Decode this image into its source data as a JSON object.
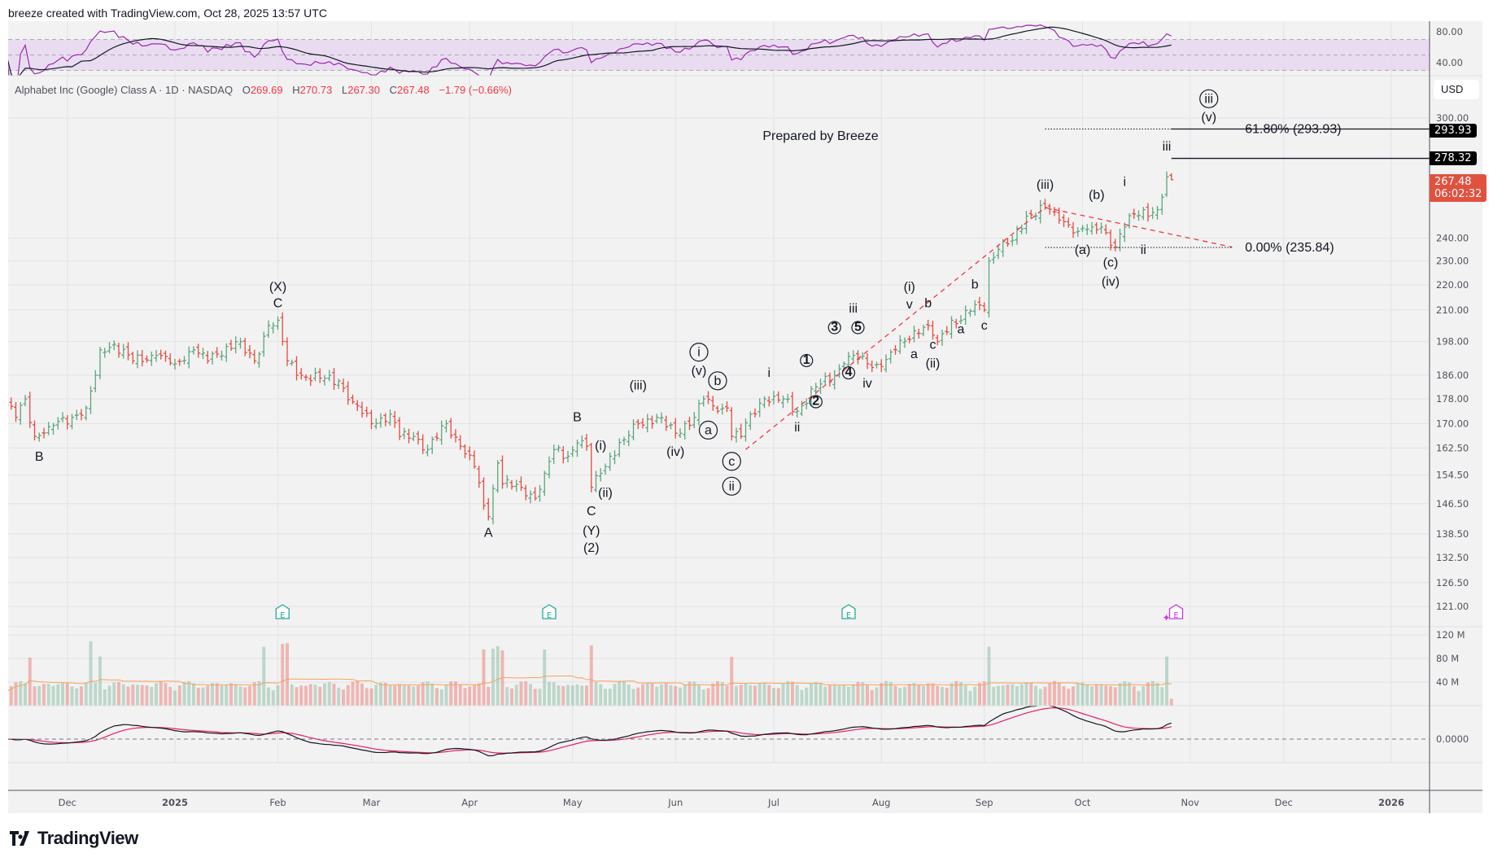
{
  "header": {
    "credit": "breeze created with TradingView.com, Oct 28, 2025 13:57 UTC"
  },
  "legend": {
    "symbol": "Alphabet Inc (Google) Class A · 1D · NASDAQ",
    "open_label": "O",
    "open": "269.69",
    "high_label": "H",
    "high": "270.73",
    "low_label": "L",
    "low": "267.30",
    "close_label": "C",
    "close": "267.48",
    "change": "−1.79 (−0.66%)"
  },
  "currency": "USD",
  "price_tags": {
    "fib_618": "293.93",
    "target_iii": "278.32",
    "last_price": "267.48",
    "countdown": "06:02:32"
  },
  "brand": "TradingView",
  "colors": {
    "up": "#5aa57e",
    "down": "#e8493e",
    "rsi": "#9c27b0",
    "rsi_band": "#e6d6f0",
    "macd": "#131722",
    "signal": "#e91e63",
    "vol_ma": "#f7a35c",
    "last_price": "#e0523f",
    "fib_line": "#131722",
    "channel": "#f23645",
    "earnings": "#22ab94",
    "earnings_upcoming": "#c837e6"
  },
  "chart_data": {
    "type": "ohlc",
    "symbol": "GOOGL",
    "interval": "1D",
    "y_scale": "log",
    "grid": true,
    "price_axis": {
      "ticks": [
        "300.00",
        "240.00",
        "230.00",
        "220.00",
        "210.00",
        "198.00",
        "186.00",
        "178.00",
        "170.00",
        "162.50",
        "154.50",
        "146.50",
        "138.50",
        "132.50",
        "126.50",
        "121.00"
      ]
    },
    "rsi_axis": {
      "ticks": [
        "80.00",
        "40.00"
      ],
      "band": [
        30,
        70
      ]
    },
    "volume_axis": {
      "ticks": [
        "120 M",
        "80 M",
        "40 M"
      ]
    },
    "macd_axis": {
      "ticks": [
        "0.0000"
      ]
    },
    "time_axis": [
      {
        "label": "Dec",
        "date": "2024-12-02",
        "bold": false
      },
      {
        "label": "2025",
        "date": "2025-01-02",
        "bold": true
      },
      {
        "label": "Feb",
        "date": "2025-02-03",
        "bold": false
      },
      {
        "label": "Mar",
        "date": "2025-03-03",
        "bold": false
      },
      {
        "label": "Apr",
        "date": "2025-04-01",
        "bold": false
      },
      {
        "label": "May",
        "date": "2025-05-01",
        "bold": false
      },
      {
        "label": "Jun",
        "date": "2025-06-02",
        "bold": false
      },
      {
        "label": "Jul",
        "date": "2025-07-01",
        "bold": false
      },
      {
        "label": "Aug",
        "date": "2025-08-01",
        "bold": false
      },
      {
        "label": "Sep",
        "date": "2025-09-02",
        "bold": false
      },
      {
        "label": "Oct",
        "date": "2025-10-01",
        "bold": false
      },
      {
        "label": "Nov",
        "date": "2025-11-03",
        "bold": false
      },
      {
        "label": "Dec",
        "date": "2025-12-01",
        "bold": false
      },
      {
        "label": "2026",
        "date": "2026-01-01",
        "bold": true
      }
    ],
    "closes_approx": [
      [
        "2024-11-13",
        176
      ],
      [
        "2024-11-15",
        172
      ],
      [
        "2024-11-19",
        178
      ],
      [
        "2024-11-21",
        166
      ],
      [
        "2024-11-26",
        169
      ],
      [
        "2024-12-03",
        172
      ],
      [
        "2024-12-06",
        175
      ],
      [
        "2024-12-10",
        186
      ],
      [
        "2024-12-11",
        195
      ],
      [
        "2024-12-16",
        197
      ],
      [
        "2024-12-20",
        191
      ],
      [
        "2024-12-27",
        193
      ],
      [
        "2025-01-02",
        190
      ],
      [
        "2025-01-08",
        195
      ],
      [
        "2025-01-13",
        191
      ],
      [
        "2025-01-21",
        198
      ],
      [
        "2025-01-27",
        191
      ],
      [
        "2025-01-30",
        204
      ],
      [
        "2025-02-03",
        206
      ],
      [
        "2025-02-05",
        191
      ],
      [
        "2025-02-10",
        186
      ],
      [
        "2025-02-14",
        185
      ],
      [
        "2025-02-20",
        184
      ],
      [
        "2025-02-25",
        177
      ],
      [
        "2025-03-03",
        170
      ],
      [
        "2025-03-07",
        173
      ],
      [
        "2025-03-11",
        166
      ],
      [
        "2025-03-14",
        166
      ],
      [
        "2025-03-19",
        162
      ],
      [
        "2025-03-25",
        170
      ],
      [
        "2025-03-28",
        163
      ],
      [
        "2025-04-02",
        157
      ],
      [
        "2025-04-04",
        146
      ],
      [
        "2025-04-07",
        143
      ],
      [
        "2025-04-09",
        158
      ],
      [
        "2025-04-10",
        152
      ],
      [
        "2025-04-16",
        151
      ],
      [
        "2025-04-21",
        148
      ],
      [
        "2025-04-23",
        155
      ],
      [
        "2025-04-25",
        162
      ],
      [
        "2025-04-30",
        160
      ],
      [
        "2025-05-02",
        164
      ],
      [
        "2025-05-06",
        163
      ],
      [
        "2025-05-07",
        151
      ],
      [
        "2025-05-09",
        155
      ],
      [
        "2025-05-13",
        160
      ],
      [
        "2025-05-16",
        165
      ],
      [
        "2025-05-21",
        170
      ],
      [
        "2025-05-27",
        172
      ],
      [
        "2025-06-02",
        167
      ],
      [
        "2025-06-06",
        172
      ],
      [
        "2025-06-10",
        178
      ],
      [
        "2025-06-13",
        174
      ],
      [
        "2025-06-17",
        175
      ],
      [
        "2025-06-18",
        166
      ],
      [
        "2025-06-20",
        166
      ],
      [
        "2025-06-24",
        173
      ],
      [
        "2025-06-27",
        178
      ],
      [
        "2025-06-30",
        177
      ],
      [
        "2025-07-03",
        178
      ],
      [
        "2025-07-08",
        174
      ],
      [
        "2025-07-14",
        182
      ],
      [
        "2025-07-18",
        186
      ],
      [
        "2025-07-22",
        190
      ],
      [
        "2025-07-24",
        193
      ],
      [
        "2025-07-29",
        190
      ],
      [
        "2025-08-01",
        189
      ],
      [
        "2025-08-06",
        195
      ],
      [
        "2025-08-12",
        202
      ],
      [
        "2025-08-15",
        204
      ],
      [
        "2025-08-19",
        198
      ],
      [
        "2025-08-22",
        206
      ],
      [
        "2025-08-26",
        206
      ],
      [
        "2025-08-29",
        212
      ],
      [
        "2025-09-02",
        210
      ],
      [
        "2025-09-03",
        230
      ],
      [
        "2025-09-05",
        235
      ],
      [
        "2025-09-10",
        239
      ],
      [
        "2025-09-15",
        250
      ],
      [
        "2025-09-19",
        254
      ],
      [
        "2025-09-23",
        252
      ],
      [
        "2025-09-26",
        246
      ],
      [
        "2025-09-30",
        243
      ],
      [
        "2025-10-03",
        245
      ],
      [
        "2025-10-07",
        245
      ],
      [
        "2025-10-10",
        236
      ],
      [
        "2025-10-14",
        245
      ],
      [
        "2025-10-16",
        251
      ],
      [
        "2025-10-20",
        253
      ],
      [
        "2025-10-21",
        250
      ],
      [
        "2025-10-23",
        253
      ],
      [
        "2025-10-24",
        259
      ],
      [
        "2025-10-27",
        269
      ],
      [
        "2025-10-28",
        267.48
      ]
    ],
    "last_bar": {
      "open": 269.69,
      "high": 270.73,
      "low": 267.3,
      "close": 267.48
    },
    "earnings": [
      {
        "date": "2025-02-04",
        "label": "E",
        "upcoming": false
      },
      {
        "date": "2025-04-24",
        "label": "E",
        "upcoming": false
      },
      {
        "date": "2025-07-23",
        "label": "E",
        "upcoming": false
      },
      {
        "date": "2025-10-29",
        "label": "E",
        "upcoming": true
      }
    ],
    "fibonacci": [
      {
        "label": "61.80% (293.93)",
        "price": 293.93,
        "from": "2025-09-19",
        "to": "2025-10-28"
      },
      {
        "label": "0.00% (235.84)",
        "price": 235.84,
        "from": "2025-09-19",
        "to": "2025-11-14"
      }
    ],
    "target_line": {
      "price": 278.32,
      "from": "2025-10-28"
    },
    "trendlines": [
      {
        "from": [
          "2025-06-23",
          162
        ],
        "to": [
          "2025-09-19",
          254
        ]
      },
      {
        "from": [
          "2025-09-19",
          254
        ],
        "to": [
          "2025-11-14",
          236
        ]
      }
    ],
    "note": {
      "text": "Prepared by Breeze",
      "date": "2025-07-15",
      "price": 288
    },
    "wave_labels": [
      {
        "text": "B",
        "date": "2024-11-22",
        "price": 158.7,
        "circled": false
      },
      {
        "text": "(X)",
        "date": "2025-02-03",
        "price": 217.6,
        "circled": false
      },
      {
        "text": "C",
        "date": "2025-02-03",
        "price": 211,
        "circled": false
      },
      {
        "text": "A",
        "date": "2025-04-07",
        "price": 137.7,
        "circled": false
      },
      {
        "text": "B",
        "date": "2025-05-02",
        "price": 170.7,
        "circled": false
      },
      {
        "text": "C",
        "date": "2025-05-07",
        "price": 143.4,
        "circled": false
      },
      {
        "text": "(Y)",
        "date": "2025-05-07",
        "price": 138.3,
        "circled": false
      },
      {
        "text": "(2)",
        "date": "2025-05-07",
        "price": 133.9,
        "circled": false
      },
      {
        "text": "(i)",
        "date": "2025-05-09",
        "price": 162,
        "circled": false
      },
      {
        "text": "(ii)",
        "date": "2025-05-12",
        "price": 148.4,
        "circled": false
      },
      {
        "text": "(iii)",
        "date": "2025-05-21",
        "price": 181.1,
        "circled": false
      },
      {
        "text": "(iv)",
        "date": "2025-06-02",
        "price": 160.1,
        "circled": false
      },
      {
        "text": "i",
        "date": "2025-06-09",
        "price": 192.7,
        "circled": true
      },
      {
        "text": "(v)",
        "date": "2025-06-09",
        "price": 186.2,
        "circled": false
      },
      {
        "text": "b",
        "date": "2025-06-13",
        "price": 182.7,
        "circled": true
      },
      {
        "text": "a",
        "date": "2025-06-11",
        "price": 166.7,
        "circled": true
      },
      {
        "text": "c",
        "date": "2025-06-18",
        "price": 157.3,
        "circled": true
      },
      {
        "text": "ii",
        "date": "2025-06-18",
        "price": 150.2,
        "circled": true
      },
      {
        "text": "i",
        "date": "2025-06-30",
        "price": 185.5,
        "circled": false
      },
      {
        "text": "ii",
        "date": "2025-07-08",
        "price": 167.5,
        "circled": false
      },
      {
        "text": "1",
        "date": "2025-07-10",
        "price": 190,
        "circled": true
      },
      {
        "text": "2",
        "date": "2025-07-14",
        "price": 176,
        "circled": true
      },
      {
        "text": "3",
        "date": "2025-07-18",
        "price": 202,
        "circled": true
      },
      {
        "text": "4",
        "date": "2025-07-23",
        "price": 185.7,
        "circled": true
      },
      {
        "text": "5",
        "date": "2025-07-25",
        "price": 202,
        "circled": true
      },
      {
        "text": "iii",
        "date": "2025-07-24",
        "price": 209,
        "circled": false
      },
      {
        "text": "iv",
        "date": "2025-07-29",
        "price": 181.8,
        "circled": false
      },
      {
        "text": "(i)",
        "date": "2025-08-11",
        "price": 217.6,
        "circled": false
      },
      {
        "text": "v",
        "date": "2025-08-11",
        "price": 210.6,
        "circled": false
      },
      {
        "text": "b",
        "date": "2025-08-15",
        "price": 211,
        "circled": false
      },
      {
        "text": "a",
        "date": "2025-08-12",
        "price": 192,
        "circled": false
      },
      {
        "text": "c",
        "date": "2025-08-18",
        "price": 195.3,
        "circled": false
      },
      {
        "text": "(ii)",
        "date": "2025-08-18",
        "price": 188.7,
        "circled": false
      },
      {
        "text": "a",
        "date": "2025-08-26",
        "price": 201.1,
        "circled": false
      },
      {
        "text": "b",
        "date": "2025-08-29",
        "price": 218.5,
        "circled": false
      },
      {
        "text": "c",
        "date": "2025-09-02",
        "price": 202.5,
        "circled": false
      },
      {
        "text": "(iii)",
        "date": "2025-09-19",
        "price": 263,
        "circled": false
      },
      {
        "text": "(a)",
        "date": "2025-10-01",
        "price": 233,
        "circled": false
      },
      {
        "text": "(b)",
        "date": "2025-10-06",
        "price": 258,
        "circled": false
      },
      {
        "text": "(c)",
        "date": "2025-10-09",
        "price": 227.7,
        "circled": false
      },
      {
        "text": "(iv)",
        "date": "2025-10-09",
        "price": 219.7,
        "circled": false
      },
      {
        "text": "i",
        "date": "2025-10-14",
        "price": 264.4,
        "circled": false
      },
      {
        "text": "ii",
        "date": "2025-10-20",
        "price": 233,
        "circled": false
      },
      {
        "text": "iii",
        "date": "2025-10-27",
        "price": 282.3,
        "circled": false
      },
      {
        "text": "iii",
        "date": "2025-11-07",
        "price": 308.6,
        "circled": true
      },
      {
        "text": "(v)",
        "date": "2025-11-07",
        "price": 298.3,
        "circled": false
      }
    ]
  }
}
